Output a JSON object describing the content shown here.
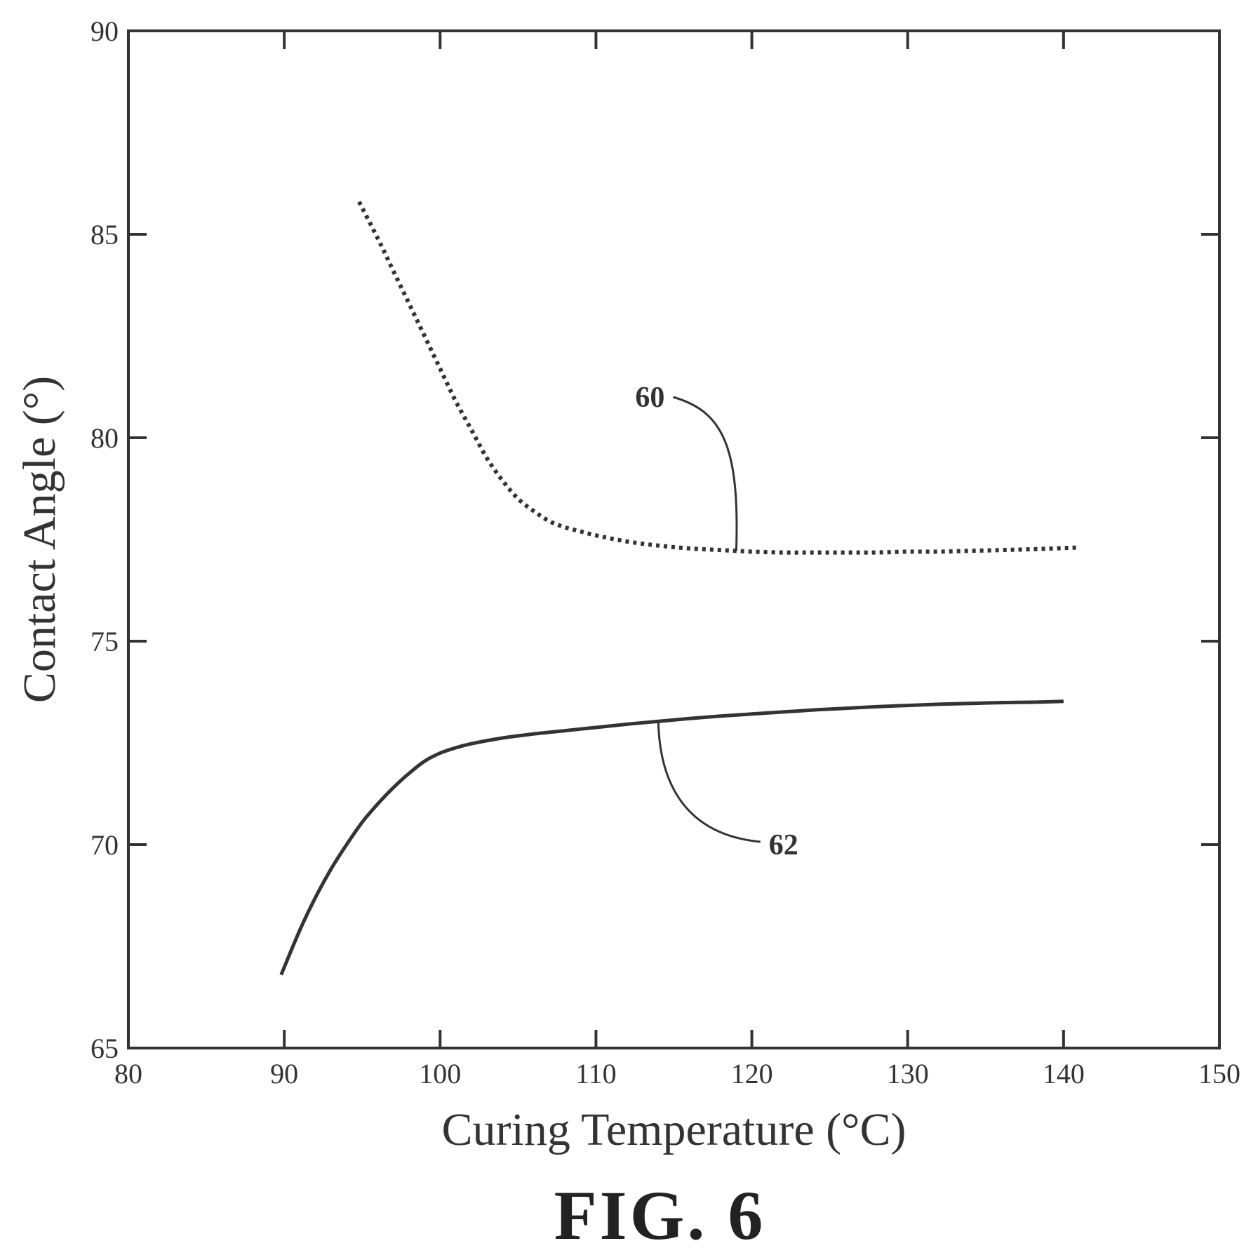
{
  "figure_label": "FIG. 6",
  "chart_data": {
    "type": "line",
    "xlabel": "Curing Temperature (°C)",
    "ylabel": "Contact Angle (°)",
    "xlim": [
      80,
      150
    ],
    "ylim": [
      65,
      90
    ],
    "xticks": [
      80,
      90,
      100,
      110,
      120,
      130,
      140,
      150
    ],
    "yticks": [
      65,
      70,
      75,
      80,
      85,
      90
    ],
    "grid": false,
    "series": [
      {
        "name": "60",
        "style": "dotted",
        "x": [
          94.8,
          96,
          97,
          98,
          99,
          100,
          101,
          102,
          103,
          104,
          105,
          106,
          107,
          108,
          109,
          110,
          112,
          114,
          116,
          118,
          119,
          120,
          122,
          124,
          126,
          128,
          130,
          132,
          134,
          136,
          138,
          140.8
        ],
        "y": [
          85.8,
          84.9,
          84.1,
          83.3,
          82.5,
          81.7,
          80.9,
          80.2,
          79.5,
          78.95,
          78.5,
          78.2,
          77.95,
          77.8,
          77.7,
          77.6,
          77.45,
          77.35,
          77.28,
          77.24,
          77.22,
          77.2,
          77.18,
          77.18,
          77.18,
          77.18,
          77.2,
          77.2,
          77.22,
          77.24,
          77.26,
          77.3
        ],
        "callout": {
          "label": "60",
          "anchor": [
            119,
            77.22
          ],
          "text_at": [
            114.5,
            81
          ]
        }
      },
      {
        "name": "62",
        "style": "solid",
        "x": [
          89.8,
          91,
          92,
          93,
          94,
          95,
          96,
          97,
          98,
          99,
          100,
          101,
          102,
          104,
          106,
          108,
          110,
          112,
          114,
          116,
          118,
          120,
          122,
          124,
          126,
          128,
          130,
          132,
          134,
          136,
          138,
          140
        ],
        "y": [
          66.8,
          67.9,
          68.7,
          69.4,
          70.0,
          70.55,
          71.0,
          71.4,
          71.75,
          72.05,
          72.25,
          72.38,
          72.48,
          72.62,
          72.72,
          72.8,
          72.88,
          72.96,
          73.03,
          73.1,
          73.16,
          73.21,
          73.26,
          73.31,
          73.35,
          73.39,
          73.42,
          73.45,
          73.47,
          73.49,
          73.5,
          73.52
        ],
        "callout": {
          "label": "62",
          "anchor": [
            114,
            73.03
          ],
          "text_at": [
            121,
            70
          ]
        }
      }
    ],
    "colors": {
      "ink": "#333333",
      "background": "#ffffff"
    }
  }
}
